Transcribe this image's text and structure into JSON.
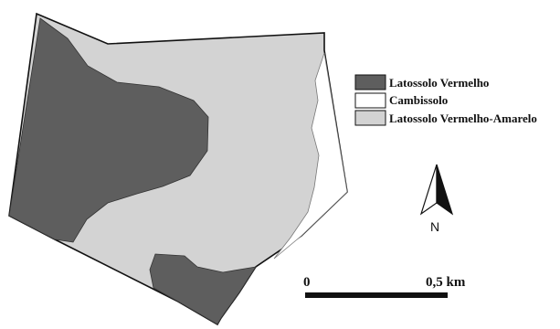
{
  "legend": {
    "items": [
      {
        "label": "Latossolo Vermelho",
        "color": "#5e5e5e"
      },
      {
        "label": "Cambissolo",
        "color": "#ffffff"
      },
      {
        "label": "Latossolo Vermelho-Amarelo",
        "color": "#d3d3d3"
      }
    ]
  },
  "north_arrow": {
    "label": "N",
    "icon": "north-arrow-icon"
  },
  "scale_bar": {
    "start_label": "0",
    "end_label": "0,5 km"
  },
  "colors": {
    "outline": "#111111",
    "latossolo_vermelho": "#5e5e5e",
    "cambissolo": "#ffffff",
    "latossolo_vermelho_amarelo": "#d3d3d3"
  }
}
